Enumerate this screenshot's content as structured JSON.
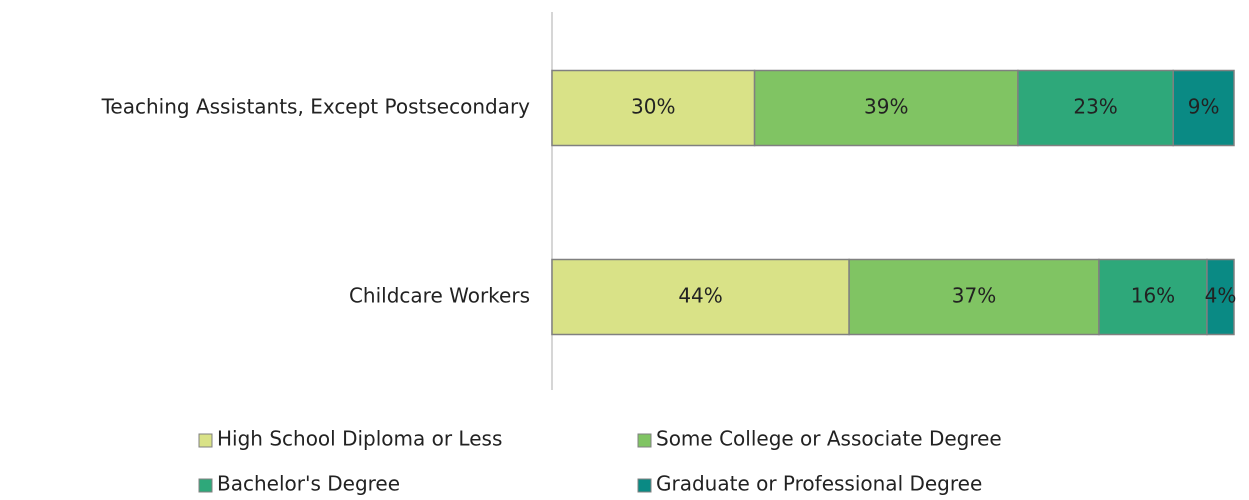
{
  "chart_data": {
    "type": "stacked-bar-horizontal",
    "categories": [
      "Teaching Assistants, Except Postsecondary",
      "Childcare Workers"
    ],
    "series": [
      {
        "name": "High School Diploma or Less",
        "color": "#d9e287",
        "values": [
          30,
          44
        ],
        "value_labels": [
          "30%",
          "44%"
        ]
      },
      {
        "name": "Some College or Associate Degree",
        "color": "#80c463",
        "values": [
          39,
          37
        ],
        "value_labels": [
          "39%",
          "37%"
        ]
      },
      {
        "name": "Bachelor's Degree",
        "color": "#2ea87a",
        "values": [
          23,
          16
        ],
        "value_labels": [
          "23%",
          "16%"
        ]
      },
      {
        "name": "Graduate or Professional Degree",
        "color": "#0a8a84",
        "values": [
          9,
          4
        ],
        "value_labels": [
          "9%",
          "4%"
        ]
      }
    ],
    "xlim": [
      0,
      101
    ]
  }
}
